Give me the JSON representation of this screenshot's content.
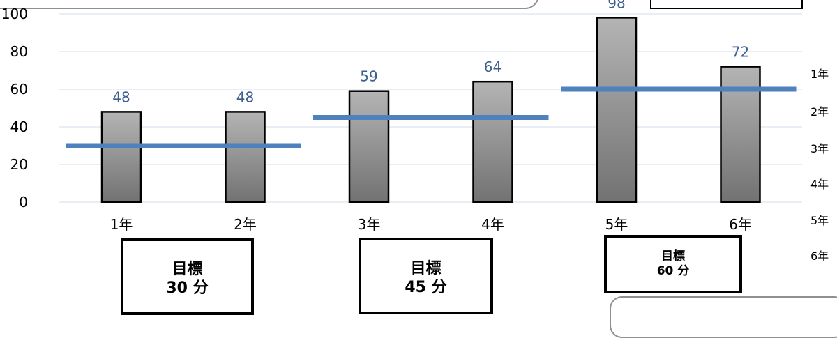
{
  "chart_data": {
    "type": "bar",
    "categories": [
      "1年",
      "2年",
      "3年",
      "4年",
      "5年",
      "6年"
    ],
    "values": [
      48,
      48,
      59,
      64,
      98,
      72
    ],
    "data_labels": [
      "48",
      "48",
      "59",
      "64",
      "98",
      "72"
    ],
    "ylim": [
      0,
      100
    ],
    "y_ticks": [
      "0",
      "20",
      "40",
      "60",
      "80",
      "100"
    ],
    "targets": [
      {
        "categories": [
          "1年",
          "2年"
        ],
        "value": 30
      },
      {
        "categories": [
          "3年",
          "4年"
        ],
        "value": 45
      },
      {
        "categories": [
          "5年",
          "6年"
        ],
        "value": 60
      }
    ],
    "grid": true,
    "title": "",
    "xlabel": "",
    "ylabel": ""
  },
  "goal_boxes": [
    {
      "label": "目標",
      "value": "30 分"
    },
    {
      "label": "目標",
      "value": "45 分"
    },
    {
      "label": "目標",
      "value": "60 分"
    }
  ],
  "right_legend_fragments": [
    "1年",
    "2年",
    "3年",
    "4年",
    "5年",
    "6年"
  ],
  "colors": {
    "bar_top": "#b4b4b4",
    "bar_bottom": "#727272",
    "bar_outline": "#000000",
    "target_line": "#4f81bd",
    "data_label": "#3d5f8f",
    "gridline": "#d3dde9",
    "axis_text": "#000000"
  }
}
